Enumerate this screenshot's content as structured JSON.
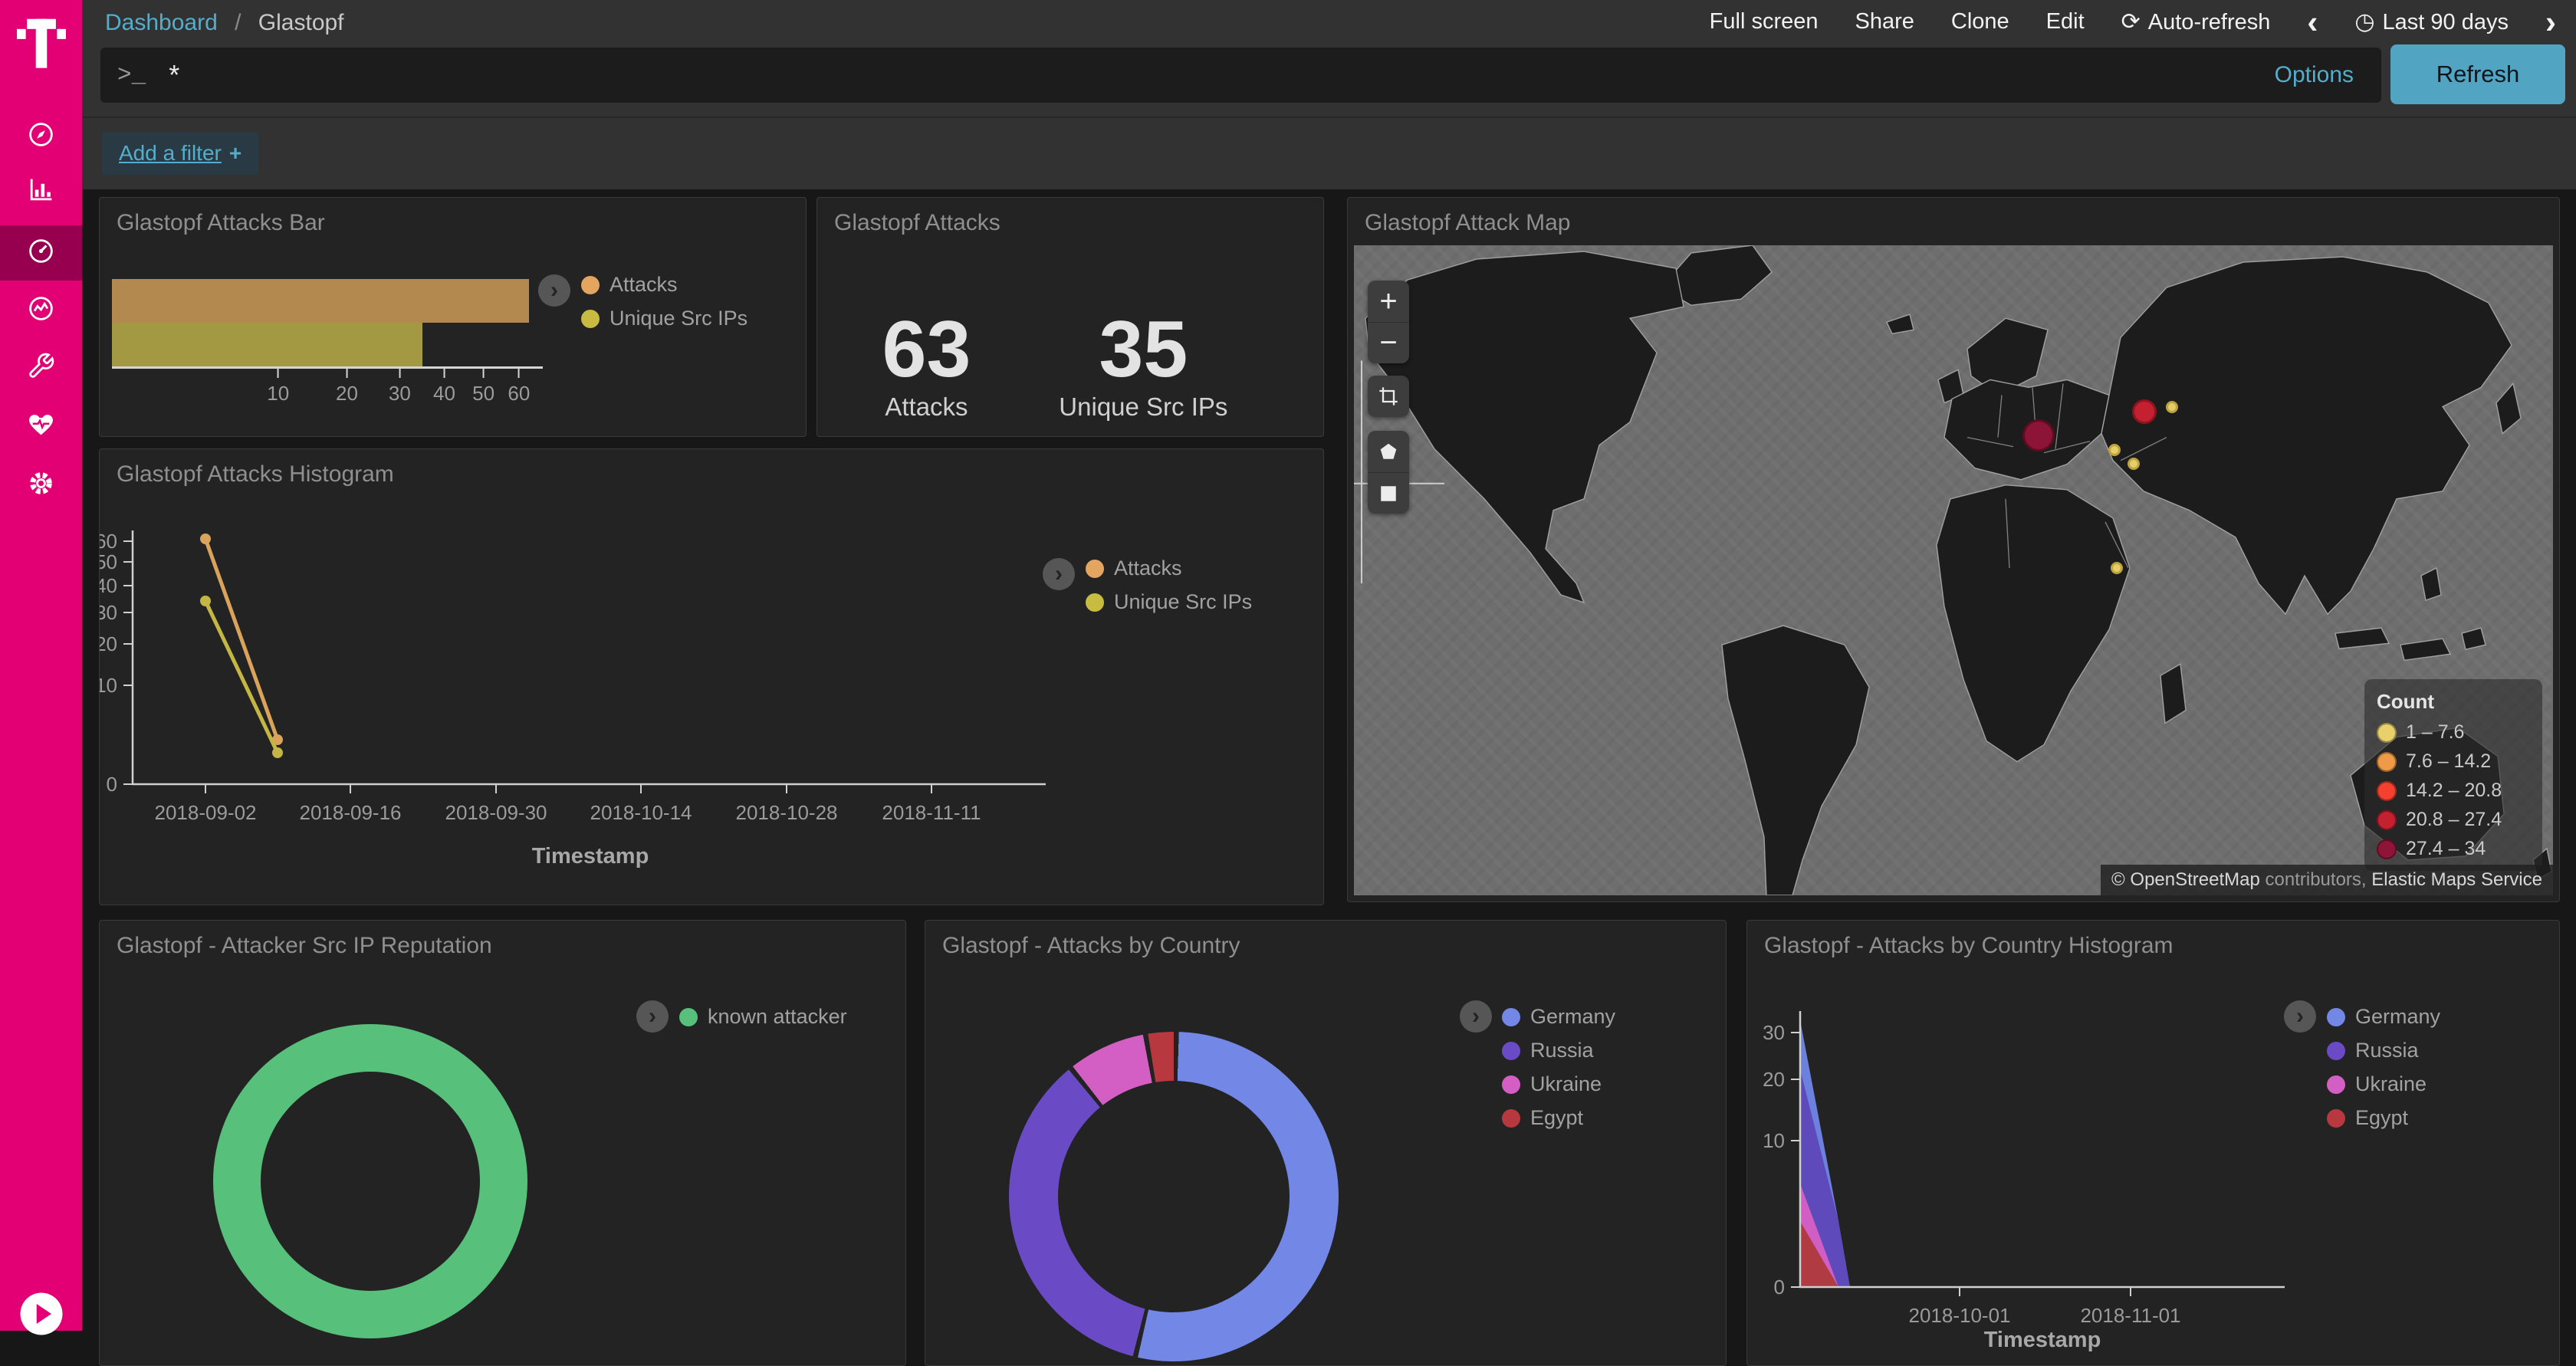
{
  "brand": {
    "accent": "#e20074",
    "active_item_bg": "#97004f"
  },
  "sidebar": {
    "items": [
      {
        "id": "discover",
        "icon": "compass-icon",
        "active": false
      },
      {
        "id": "visualize",
        "icon": "bar-chart-icon",
        "active": false
      },
      {
        "id": "dashboard",
        "icon": "gauge-icon",
        "active": true
      },
      {
        "id": "timelion",
        "icon": "time-series-icon",
        "active": false
      },
      {
        "id": "dev-tools",
        "icon": "wrench-icon",
        "active": false
      },
      {
        "id": "monitoring",
        "icon": "heartbeat-icon",
        "active": false
      },
      {
        "id": "management",
        "icon": "gear-icon",
        "active": false
      }
    ],
    "collapse_icon": "play-circle-icon"
  },
  "topnav": {
    "breadcrumb": {
      "root": "Dashboard",
      "separator": "/",
      "current": "Glastopf"
    },
    "actions": [
      "Full screen",
      "Share",
      "Clone",
      "Edit"
    ],
    "auto_refresh": {
      "icon": "⟳",
      "label": "Auto-refresh"
    },
    "prev_icon": "‹",
    "next_icon": "›",
    "time_picker": {
      "icon": "◷",
      "label": "Last 90 days"
    }
  },
  "query_bar": {
    "prompt": ">_",
    "value": "*",
    "options_label": "Options",
    "refresh_label": "Refresh"
  },
  "filter_bar": {
    "label": "Add a filter",
    "plus": "+"
  },
  "panels": {
    "attacks_bar": {
      "title": "Glastopf Attacks Bar",
      "legend": [
        {
          "label": "Attacks",
          "color": "#e3a55f"
        },
        {
          "label": "Unique Src IPs",
          "color": "#c8bb42"
        }
      ],
      "chart_data": {
        "type": "bar",
        "orientation": "horizontal",
        "scale": "sqrt",
        "xmax": 63,
        "xticks": [
          10,
          20,
          30,
          40,
          50,
          60
        ],
        "series": [
          {
            "name": "Attacks",
            "value": 63,
            "color": "#b4894f"
          },
          {
            "name": "Unique Src IPs",
            "value": 35,
            "color": "#a29942"
          }
        ]
      }
    },
    "attacks_metric": {
      "title": "Glastopf Attacks",
      "metrics": [
        {
          "value": "63",
          "label": "Attacks"
        },
        {
          "value": "35",
          "label": "Unique Src IPs"
        }
      ]
    },
    "attack_map": {
      "title": "Glastopf Attack Map",
      "controls": {
        "zoom_in": "+",
        "zoom_out": "−",
        "tools": [
          "crop",
          "polygon",
          "rectangle"
        ]
      },
      "legend": {
        "title": "Count",
        "buckets": [
          {
            "range": "1 – 7.6",
            "color": "#e8d06b"
          },
          {
            "range": "7.6 – 14.2",
            "color": "#ef9a47"
          },
          {
            "range": "14.2 – 20.8",
            "color": "#f4402f"
          },
          {
            "range": "20.8 – 27.4",
            "color": "#c32030"
          },
          {
            "range": "27.4 – 34",
            "color": "#8e1537"
          }
        ]
      },
      "attribution": {
        "prefix": "©",
        "link": "OpenStreetMap",
        "middle": "contributors,",
        "service": "Elastic Maps Service"
      },
      "points": [
        {
          "fx": 0.571,
          "fy": 0.293,
          "r": 21,
          "fill": "#8c1537",
          "stroke": "#5f0b22"
        },
        {
          "fx": 0.659,
          "fy": 0.257,
          "r": 16,
          "fill": "#c32132",
          "stroke": "#8e141f"
        },
        {
          "fx": 0.682,
          "fy": 0.249,
          "r": 8,
          "fill": "#e5cd68",
          "stroke": "#bfa43c"
        },
        {
          "fx": 0.634,
          "fy": 0.316,
          "r": 8,
          "fill": "#e5cd68",
          "stroke": "#bfa43c"
        },
        {
          "fx": 0.65,
          "fy": 0.337,
          "r": 8,
          "fill": "#e5cd68",
          "stroke": "#bfa43c"
        },
        {
          "fx": 0.636,
          "fy": 0.498,
          "r": 8,
          "fill": "#e5cd68",
          "stroke": "#bfa43c"
        }
      ]
    },
    "attacks_histogram": {
      "title": "Glastopf Attacks Histogram",
      "legend": [
        {
          "label": "Attacks",
          "color": "#e3a55f"
        },
        {
          "label": "Unique Src IPs",
          "color": "#c8bb42"
        }
      ],
      "chart_data": {
        "type": "line",
        "y_scale": "sqrt",
        "ymax": 63,
        "x_label": "Timestamp",
        "yticks": [
          0,
          10,
          20,
          30,
          40,
          50,
          60
        ],
        "x_domain": [
          "2018-08-26",
          "2018-11-22"
        ],
        "xticks": [
          "2018-09-02",
          "2018-09-16",
          "2018-09-30",
          "2018-10-14",
          "2018-10-28",
          "2018-11-11"
        ],
        "series": [
          {
            "name": "Attacks",
            "color": "#d9a35c",
            "points": [
              {
                "x": "2018-09-02",
                "y": 61
              },
              {
                "x": "2018-09-09",
                "y": 2
              }
            ]
          },
          {
            "name": "Unique Src IPs",
            "color": "#c3b643",
            "points": [
              {
                "x": "2018-09-02",
                "y": 34
              },
              {
                "x": "2018-09-09",
                "y": 1
              }
            ]
          }
        ]
      }
    },
    "src_ip_reputation": {
      "title": "Glastopf - Attacker Src IP Reputation",
      "legend": [
        {
          "label": "known attacker",
          "color": "#57c17b"
        }
      ],
      "chart_data": {
        "type": "pie",
        "donut": true,
        "slices": [
          {
            "label": "known attacker",
            "pct": 100,
            "color": "#57c17b"
          }
        ]
      }
    },
    "attacks_by_country": {
      "title": "Glastopf - Attacks by Country",
      "legend": [
        {
          "label": "Germany",
          "color": "#7387e6"
        },
        {
          "label": "Russia",
          "color": "#6a4bc5"
        },
        {
          "label": "Ukraine",
          "color": "#d45fc4"
        },
        {
          "label": "Egypt",
          "color": "#b8383f"
        }
      ],
      "chart_data": {
        "type": "pie",
        "donut": true,
        "slices": [
          {
            "label": "Germany",
            "pct": 53.5,
            "color": "#7387e6"
          },
          {
            "label": "Russia",
            "pct": 35.5,
            "color": "#6a4bc5"
          },
          {
            "label": "Ukraine",
            "pct": 8,
            "color": "#d45fc4"
          },
          {
            "label": "Egypt",
            "pct": 3,
            "color": "#b8383f"
          }
        ]
      }
    },
    "attacks_by_country_histogram": {
      "title": "Glastopf - Attacks by Country Histogram",
      "legend": [
        {
          "label": "Germany",
          "color": "#7387e6"
        },
        {
          "label": "Russia",
          "color": "#6a4bc5"
        },
        {
          "label": "Ukraine",
          "color": "#d45fc4"
        },
        {
          "label": "Egypt",
          "color": "#b8383f"
        }
      ],
      "chart_data": {
        "type": "area",
        "mode": "overlap",
        "y_scale": "sqrt",
        "ymax": 34,
        "x_label": "Timestamp",
        "yticks": [
          0,
          10,
          20,
          30
        ],
        "x_domain": [
          "2018-09-02",
          "2018-11-29"
        ],
        "xticks": [
          "2018-10-01",
          "2018-11-01"
        ],
        "series": [
          {
            "name": "Germany",
            "color": "#6e83e4",
            "points": [
              {
                "x": "2018-09-02",
                "y": 33
              },
              {
                "x": "2018-09-09",
                "y": 2
              },
              {
                "x": "2018-09-11",
                "y": 0
              }
            ]
          },
          {
            "name": "Russia",
            "color": "#5f48bb",
            "points": [
              {
                "x": "2018-09-02",
                "y": 22
              },
              {
                "x": "2018-09-09",
                "y": 2
              },
              {
                "x": "2018-09-11",
                "y": 0
              }
            ]
          },
          {
            "name": "Ukraine",
            "color": "#d45fc4",
            "points": [
              {
                "x": "2018-09-02",
                "y": 5
              },
              {
                "x": "2018-09-09",
                "y": 0
              }
            ]
          },
          {
            "name": "Egypt",
            "color": "#b03a3f",
            "points": [
              {
                "x": "2018-09-02",
                "y": 2
              },
              {
                "x": "2018-09-09",
                "y": 0
              }
            ]
          }
        ]
      }
    }
  }
}
